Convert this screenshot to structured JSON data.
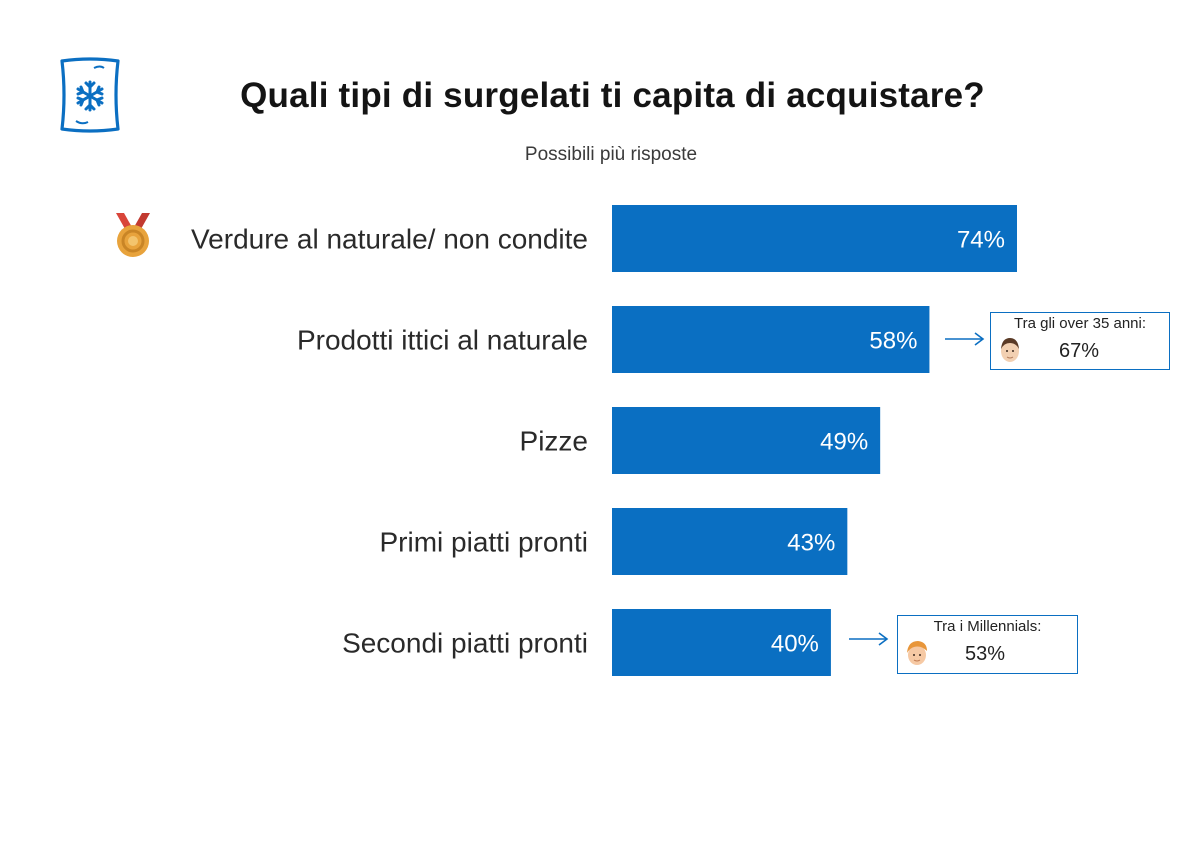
{
  "header": {
    "title": "Quali tipi di surgelati ti capita di acquistare?",
    "subtitle": "Possibili più risposte"
  },
  "icons": {
    "logo": "snowflake-icon",
    "top_item_badge": "medal-icon",
    "callout_avatar_1": "man-avatar-icon",
    "callout_avatar_2": "young-man-avatar-icon"
  },
  "colors": {
    "bar": "#0a6fc2",
    "accent": "#0b6fc2",
    "medal": "#e8a33c",
    "ribbon": "#d9453a"
  },
  "callouts": [
    {
      "caption_pre": "Tra gli ",
      "caption_bold": "over 35 anni:",
      "value": "67%"
    },
    {
      "caption_pre": "Tra i ",
      "caption_bold": "Millennials:",
      "value": "53%"
    }
  ],
  "chart_data": {
    "type": "bar",
    "orientation": "horizontal",
    "title": "Quali tipi di surgelati ti capita di acquistare?",
    "subtitle": "Possibili più risposte",
    "categories": [
      "Verdure al naturale/ non condite",
      "Prodotti ittici al naturale",
      "Pizze",
      "Primi piatti pronti",
      "Secondi piatti pronti"
    ],
    "values": [
      74,
      58,
      49,
      43,
      40
    ],
    "value_labels": [
      "74%",
      "58%",
      "49%",
      "43%",
      "40%"
    ],
    "xlim": [
      0,
      100
    ],
    "grid": false,
    "legend": "none"
  }
}
